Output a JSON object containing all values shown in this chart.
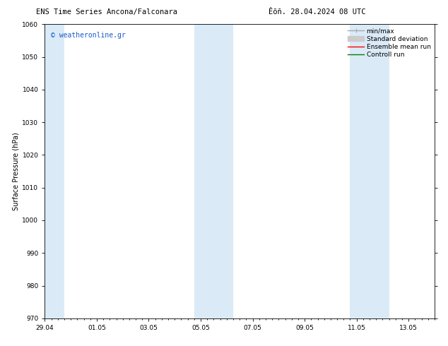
{
  "title_left": "ENS Time Series Ancona/Falconara",
  "title_right": "Êõñ. 28.04.2024 08 UTC",
  "ylabel": "Surface Pressure (hPa)",
  "ylim": [
    970,
    1060
  ],
  "yticks": [
    970,
    980,
    990,
    1000,
    1010,
    1020,
    1030,
    1040,
    1050,
    1060
  ],
  "xtick_labels": [
    "29.04",
    "01.05",
    "03.05",
    "05.05",
    "07.05",
    "09.05",
    "11.05",
    "13.05"
  ],
  "xtick_positions": [
    0,
    2,
    4,
    6,
    8,
    10,
    12,
    14
  ],
  "xlim": [
    0,
    15
  ],
  "watermark": "© weatheronline.gr",
  "watermark_color": "#1a5acd",
  "bg_color": "#ffffff",
  "plot_bg_color": "#ffffff",
  "shaded_band_color": "#daeaf7",
  "shaded_bands": [
    {
      "x_start": 0,
      "x_end": 0.75
    },
    {
      "x_start": 5.75,
      "x_end": 7.25
    },
    {
      "x_start": 11.75,
      "x_end": 13.25
    }
  ],
  "legend_items": [
    {
      "label": "min/max",
      "color": "#aaaaaa"
    },
    {
      "label": "Standard deviation",
      "color": "#cccccc"
    },
    {
      "label": "Ensemble mean run",
      "color": "#ff0000"
    },
    {
      "label": "Controll run",
      "color": "#008000"
    }
  ],
  "font_size_title": 7.5,
  "font_size_axis_label": 7,
  "font_size_tick": 6.5,
  "font_size_legend": 6.5,
  "font_size_watermark": 7,
  "spine_lw": 0.6,
  "tick_lw": 0.6,
  "minor_tick_every": 0.25
}
